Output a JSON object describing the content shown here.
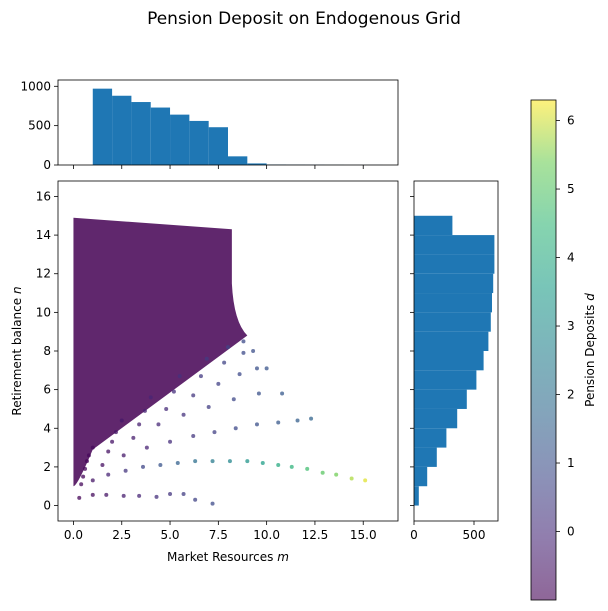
{
  "chart_data": [
    {
      "type": "scatter",
      "title": "Pension Deposit on Endogenous Grid",
      "xlabel": "Market Resources",
      "xlabel_var": "m",
      "ylabel": "Retirement balance",
      "ylabel_var": "n",
      "xlim": [
        -0.8,
        16.8
      ],
      "ylim": [
        -0.8,
        16.8
      ],
      "xticks": [
        "0.0",
        "2.5",
        "5.0",
        "7.5",
        "10.0",
        "12.5",
        "15.0"
      ],
      "yticks": [
        "0",
        "2",
        "4",
        "6",
        "8",
        "10",
        "12",
        "14",
        "16"
      ],
      "colormap": "viridis",
      "color_alpha": 0.6,
      "dense_region": {
        "top_left": [
          0.0,
          14.9
        ],
        "top_right": [
          8.2,
          14.3
        ],
        "bottom_left": [
          0.0,
          1.0
        ],
        "color_value": -1.0
      },
      "series": [
        {
          "points": [
            [
              0.3,
              0.4
            ],
            [
              1.0,
              0.55
            ],
            [
              1.7,
              0.55
            ],
            [
              2.6,
              0.5
            ],
            [
              3.4,
              0.5
            ],
            [
              4.3,
              0.45
            ],
            [
              5.0,
              0.6
            ],
            [
              5.7,
              0.6
            ],
            [
              6.3,
              0.3
            ],
            [
              7.2,
              0.1
            ]
          ]
        },
        {
          "points": [
            [
              0.4,
              1.1
            ],
            [
              1.0,
              1.3
            ],
            [
              1.8,
              1.6
            ],
            [
              2.7,
              1.8
            ],
            [
              3.6,
              2.0
            ],
            [
              4.5,
              2.1
            ],
            [
              5.4,
              2.2
            ],
            [
              6.3,
              2.3
            ],
            [
              7.2,
              2.3
            ],
            [
              8.1,
              2.3
            ],
            [
              9.0,
              2.3
            ],
            [
              9.8,
              2.2
            ],
            [
              10.6,
              2.1
            ],
            [
              11.3,
              2.0
            ],
            [
              12.1,
              1.9
            ],
            [
              12.9,
              1.7
            ],
            [
              13.6,
              1.6
            ],
            [
              14.4,
              1.4
            ],
            [
              15.1,
              1.3
            ]
          ]
        },
        {
          "points": [
            [
              0.5,
              1.5
            ],
            [
              1.5,
              2.1
            ],
            [
              2.6,
              2.6
            ],
            [
              3.8,
              3.0
            ],
            [
              5.0,
              3.3
            ],
            [
              6.2,
              3.6
            ],
            [
              7.3,
              3.8
            ],
            [
              8.4,
              4.0
            ],
            [
              9.5,
              4.2
            ],
            [
              10.6,
              4.3
            ],
            [
              11.6,
              4.4
            ],
            [
              12.3,
              4.5
            ]
          ]
        },
        {
          "points": [
            [
              0.6,
              1.9
            ],
            [
              1.8,
              2.8
            ],
            [
              3.1,
              3.5
            ],
            [
              4.4,
              4.2
            ],
            [
              5.7,
              4.7
            ],
            [
              7.0,
              5.1
            ],
            [
              8.3,
              5.5
            ],
            [
              9.6,
              5.8
            ],
            [
              10.8,
              5.8
            ]
          ]
        },
        {
          "points": [
            [
              0.7,
              2.3
            ],
            [
              2.0,
              3.3
            ],
            [
              3.4,
              4.2
            ],
            [
              4.8,
              5.0
            ],
            [
              6.2,
              5.7
            ],
            [
              7.5,
              6.3
            ],
            [
              8.6,
              6.8
            ],
            [
              9.5,
              7.1
            ],
            [
              10.0,
              7.1
            ]
          ]
        },
        {
          "points": [
            [
              0.8,
              2.6
            ],
            [
              2.2,
              3.8
            ],
            [
              3.7,
              4.9
            ],
            [
              5.2,
              5.9
            ],
            [
              6.6,
              6.7
            ],
            [
              7.8,
              7.4
            ],
            [
              8.8,
              7.9
            ],
            [
              9.3,
              8.0
            ]
          ]
        },
        {
          "points": [
            [
              1.0,
              3.0
            ],
            [
              2.5,
              4.4
            ],
            [
              4.0,
              5.6
            ],
            [
              5.5,
              6.7
            ],
            [
              6.9,
              7.6
            ],
            [
              8.0,
              8.2
            ],
            [
              8.8,
              8.5
            ]
          ]
        }
      ]
    },
    {
      "type": "bar",
      "orientation": "vertical",
      "bins_x": [
        [
          1.0,
          2.0
        ],
        [
          2.0,
          3.0
        ],
        [
          3.0,
          4.0
        ],
        [
          4.0,
          5.0
        ],
        [
          5.0,
          6.0
        ],
        [
          6.0,
          7.0
        ],
        [
          7.0,
          8.0
        ],
        [
          8.0,
          9.0
        ],
        [
          9.0,
          10.0
        ],
        [
          10.0,
          11.0
        ],
        [
          11.0,
          12.0
        ],
        [
          12.0,
          13.0
        ],
        [
          13.0,
          14.0
        ],
        [
          14.0,
          15.0
        ],
        [
          15.0,
          16.0
        ]
      ],
      "values": [
        970,
        880,
        800,
        730,
        640,
        560,
        480,
        110,
        20,
        6,
        4,
        3,
        2,
        1,
        1
      ],
      "ylim": [
        0,
        1080
      ],
      "yticks": [
        "0",
        "500",
        "1000"
      ],
      "color": "#1f77b4"
    },
    {
      "type": "bar",
      "orientation": "horizontal",
      "bins_y": [
        [
          0,
          1
        ],
        [
          1,
          2
        ],
        [
          2,
          3
        ],
        [
          3,
          4
        ],
        [
          4,
          5
        ],
        [
          5,
          6
        ],
        [
          6,
          7
        ],
        [
          7,
          8
        ],
        [
          8,
          9
        ],
        [
          9,
          10
        ],
        [
          10,
          11
        ],
        [
          11,
          12
        ],
        [
          12,
          13
        ],
        [
          13,
          14
        ],
        [
          14,
          15
        ]
      ],
      "values": [
        40,
        110,
        190,
        270,
        360,
        440,
        520,
        580,
        620,
        640,
        650,
        660,
        670,
        670,
        320
      ],
      "xlim": [
        0,
        700
      ],
      "xticks": [
        "0",
        "500"
      ],
      "color": "#1f77b4"
    }
  ],
  "colorbar": {
    "label": "Pension Deposits",
    "label_var": "d",
    "colormap": "viridis",
    "range": [
      -1.0,
      6.3
    ],
    "ticks": [
      "0",
      "1",
      "2",
      "3",
      "4",
      "5",
      "6"
    ]
  }
}
